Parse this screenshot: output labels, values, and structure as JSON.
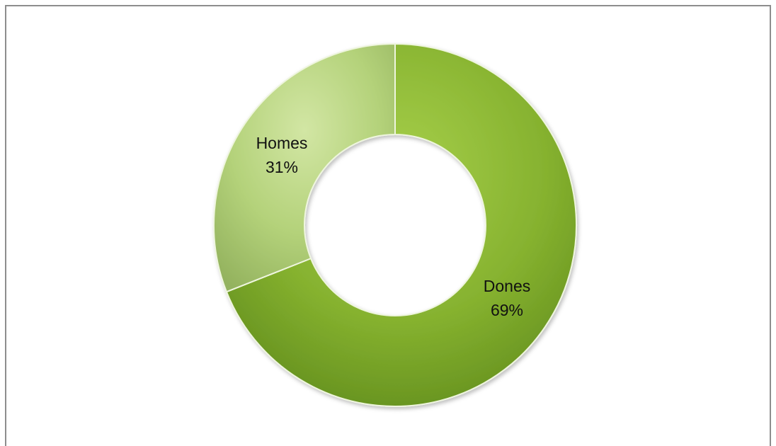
{
  "chart_data": {
    "type": "pie",
    "variant": "donut",
    "title": "",
    "categories": [
      "Dones",
      "Homes"
    ],
    "values": [
      69,
      31
    ],
    "value_labels": [
      "69%",
      "31%"
    ],
    "colors": [
      "#86b22f",
      "#b4d27a"
    ],
    "start_angle": "12 o'clock, clockwise",
    "legend": "none (labels on slices)"
  }
}
